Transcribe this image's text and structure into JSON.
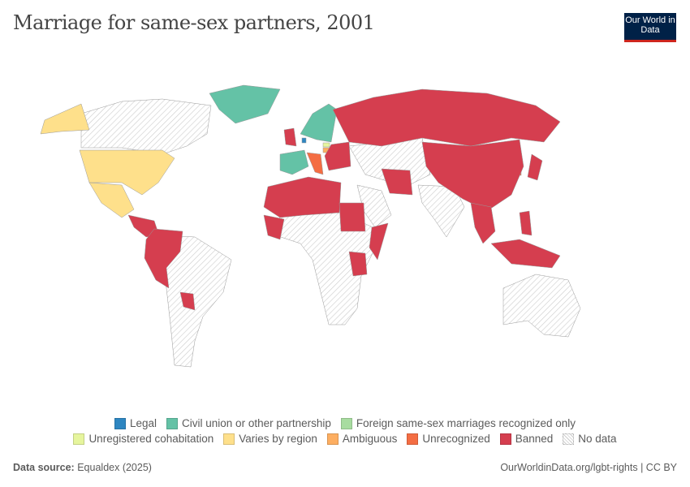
{
  "header": {
    "title": "Marriage for same-sex partners, 2001",
    "logo": "Our World in Data"
  },
  "legend": {
    "row1": [
      {
        "label": "Legal",
        "color": "#2e86c1"
      },
      {
        "label": "Civil union or other partnership",
        "color": "#64c2a6"
      },
      {
        "label": "Foreign same-sex marriages recognized only",
        "color": "#a8dca0"
      }
    ],
    "row2": [
      {
        "label": "Unregistered cohabitation",
        "color": "#e6f59d"
      },
      {
        "label": "Varies by region",
        "color": "#fee08b"
      },
      {
        "label": "Ambiguous",
        "color": "#fdae61"
      },
      {
        "label": "Unrecognized",
        "color": "#f46d43"
      },
      {
        "label": "Banned",
        "color": "#d53e4f"
      },
      {
        "label": "No data",
        "color": "hatched"
      }
    ]
  },
  "footer": {
    "source_label": "Data source:",
    "source": "Equaldex (2025)",
    "url": "OurWorldinData.org/lgbt-rights | CC BY"
  }
}
